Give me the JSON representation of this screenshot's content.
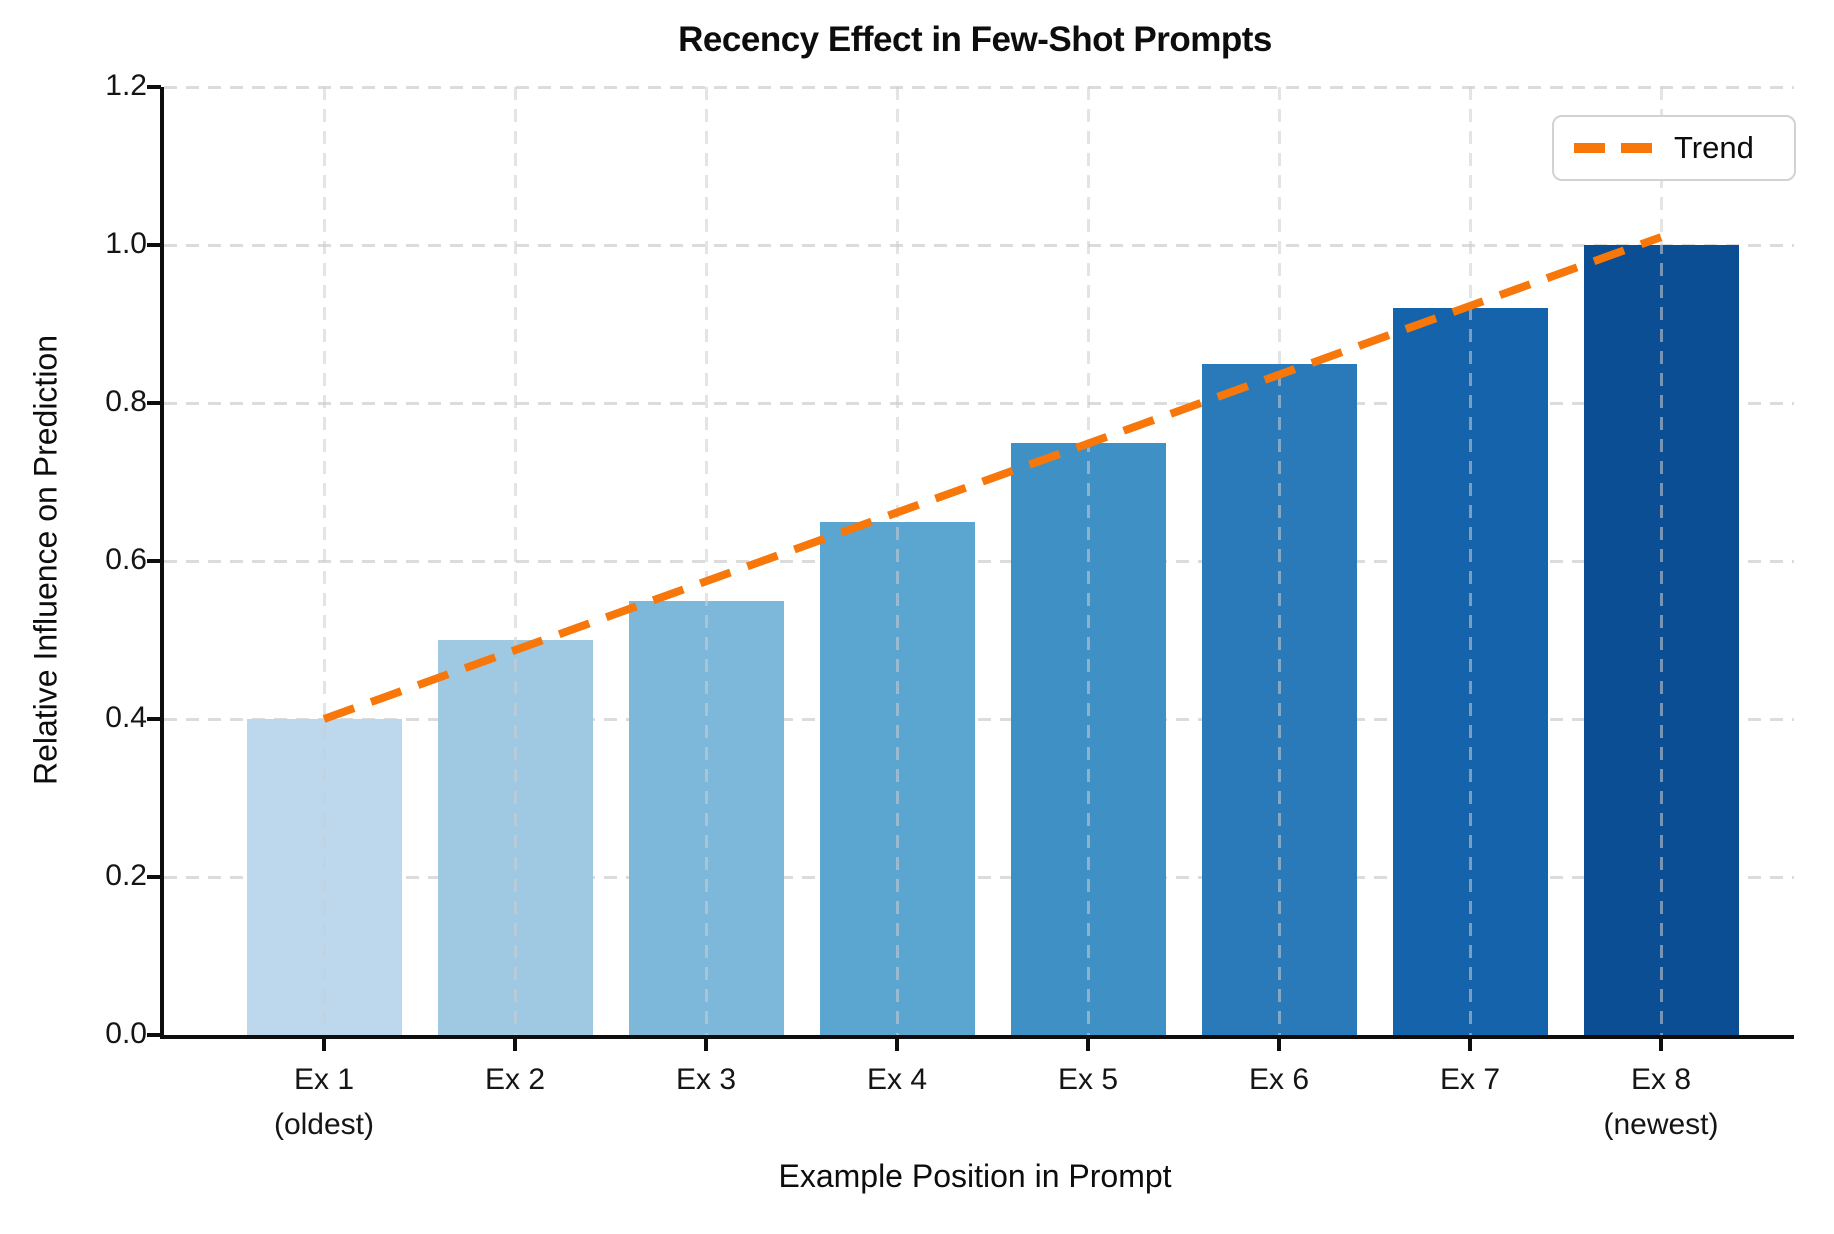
{
  "chart_data": {
    "type": "bar",
    "title": "Recency Effect in Few-Shot Prompts",
    "xlabel": "Example Position in Prompt",
    "ylabel": "Relative Influence on Prediction",
    "categories": [
      {
        "label": "Ex 1",
        "note": "(oldest)"
      },
      {
        "label": "Ex 2",
        "note": ""
      },
      {
        "label": "Ex 3",
        "note": ""
      },
      {
        "label": "Ex 4",
        "note": ""
      },
      {
        "label": "Ex 5",
        "note": ""
      },
      {
        "label": "Ex 6",
        "note": ""
      },
      {
        "label": "Ex 7",
        "note": ""
      },
      {
        "label": "Ex 8",
        "note": "(newest)"
      }
    ],
    "values": [
      0.4,
      0.5,
      0.55,
      0.65,
      0.75,
      0.85,
      0.92,
      1.0
    ],
    "bar_colors": [
      "#bdd7ec",
      "#9fc9e2",
      "#7db8da",
      "#5ba5d1",
      "#3f91c5",
      "#2a7ab9",
      "#1564ab",
      "#0b4e94"
    ],
    "ylim": [
      0,
      1.2
    ],
    "yticks": [
      0,
      0.2,
      0.4,
      0.6,
      0.8,
      1.0,
      1.2
    ],
    "ytick_labels": [
      "0.0",
      "0.2",
      "0.4",
      "0.6",
      "0.8",
      "1.0",
      "1.2"
    ],
    "grid": {
      "visible": true,
      "style": "dashed",
      "color": "#dcdcdc"
    },
    "trend": {
      "label": "Trend",
      "color": "#f7770b",
      "style": "dashed",
      "x_start_index": 0,
      "x_end_index": 7,
      "y_start": 0.4,
      "y_end": 1.01
    },
    "legend": {
      "position": "upper right",
      "entries": [
        {
          "label": "Trend",
          "color": "#f7770b",
          "line_style": "dashed"
        }
      ]
    }
  }
}
